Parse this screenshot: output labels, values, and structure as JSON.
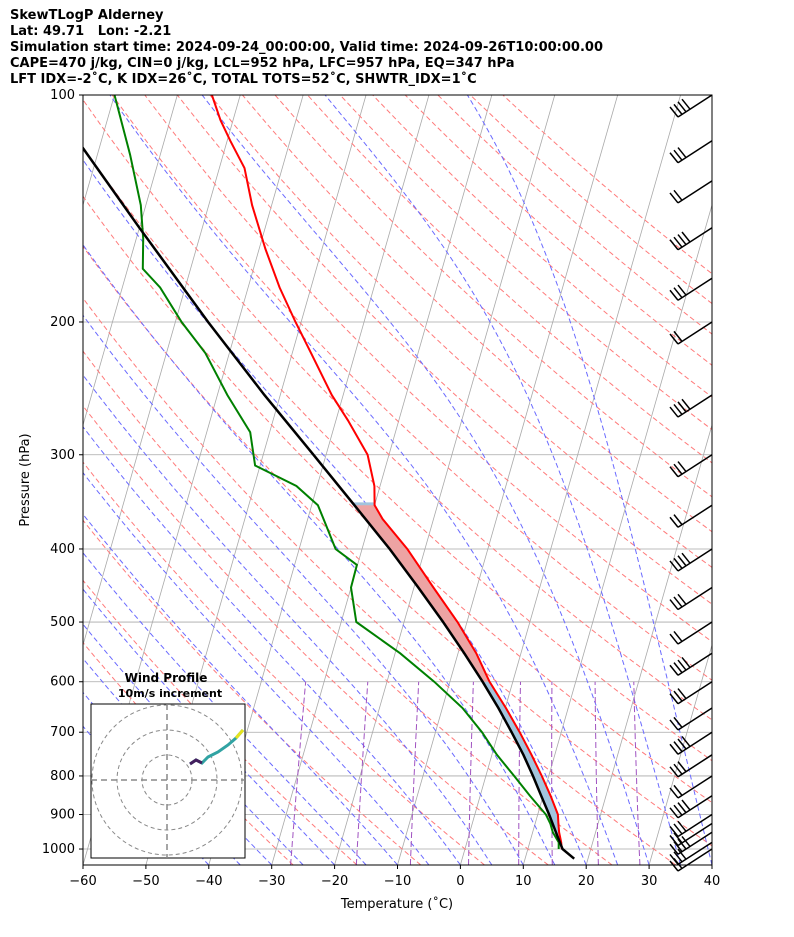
{
  "header": {
    "line1": "SkewTLogP Alderney",
    "line2": "Lat: 49.71   Lon: -2.21",
    "line3": "Simulation start time: 2024-09-24_00:00:00, Valid time: 2024-09-26T10:00:00.00",
    "line4": "CAPE=470 j/kg, CIN=0 j/kg, LCL=952 hPa, LFC=957 hPa, EQ=347 hPa",
    "line5": "LFT IDX=-2˚C, K IDX=26˚C, TOTAL TOTS=52˚C, SHWTR_IDX=1˚C"
  },
  "chart_data": {
    "type": "skew-t log-p",
    "xlabel": "Temperature (˚C)",
    "ylabel": "Pressure (hPa)",
    "xlim": [
      -60,
      40
    ],
    "ylim": [
      1050,
      100
    ],
    "x_ticks": [
      "−60",
      "−50",
      "−40",
      "−30",
      "−20",
      "−10",
      "0",
      "10",
      "20",
      "30",
      "40"
    ],
    "y_ticks": [
      100,
      200,
      300,
      400,
      500,
      600,
      700,
      800,
      900,
      1000
    ],
    "colors": {
      "temperature": "#ff0000",
      "dewpoint": "#008000",
      "parcel": "#000000",
      "cape_fill": "#a2c4dd",
      "cin_fill": "#eda3a3",
      "dry_adiabat": "#ff7b7b",
      "moist_adiabat": "#6a6aff",
      "mixing_ratio": "#a052c0",
      "isotherm": "#a9a9a9"
    },
    "temperature_profile": [
      {
        "p": 1000,
        "t": 15.4
      },
      {
        "p": 980,
        "t": 15.0
      },
      {
        "p": 950,
        "t": 14.2
      },
      {
        "p": 925,
        "t": 13.7
      },
      {
        "p": 900,
        "t": 13.2
      },
      {
        "p": 850,
        "t": 11.2
      },
      {
        "p": 800,
        "t": 8.9
      },
      {
        "p": 750,
        "t": 6.3
      },
      {
        "p": 700,
        "t": 3.4
      },
      {
        "p": 650,
        "t": 0.1
      },
      {
        "p": 600,
        "t": -3.7
      },
      {
        "p": 550,
        "t": -7.1
      },
      {
        "p": 500,
        "t": -11.5
      },
      {
        "p": 450,
        "t": -16.9
      },
      {
        "p": 400,
        "t": -22.8
      },
      {
        "p": 365,
        "t": -28.1
      },
      {
        "p": 350,
        "t": -30.0
      },
      {
        "p": 330,
        "t": -30.9
      },
      {
        "p": 300,
        "t": -33.4
      },
      {
        "p": 270,
        "t": -38.1
      },
      {
        "p": 250,
        "t": -41.8
      },
      {
        "p": 220,
        "t": -47.0
      },
      {
        "p": 200,
        "t": -50.9
      },
      {
        "p": 180,
        "t": -55.0
      },
      {
        "p": 160,
        "t": -59.0
      },
      {
        "p": 140,
        "t": -63.1
      },
      {
        "p": 125,
        "t": -66.0
      },
      {
        "p": 115,
        "t": -69.5
      },
      {
        "p": 108,
        "t": -72.0
      },
      {
        "p": 100,
        "t": -74.5
      }
    ],
    "dewpoint_profile": [
      {
        "p": 1000,
        "t": 14.9
      },
      {
        "p": 980,
        "t": 14.6
      },
      {
        "p": 950,
        "t": 13.2
      },
      {
        "p": 925,
        "t": 12.4
      },
      {
        "p": 900,
        "t": 11.3
      },
      {
        "p": 850,
        "t": 7.9
      },
      {
        "p": 800,
        "t": 4.5
      },
      {
        "p": 750,
        "t": 0.8
      },
      {
        "p": 700,
        "t": -2.6
      },
      {
        "p": 650,
        "t": -6.8
      },
      {
        "p": 600,
        "t": -12.5
      },
      {
        "p": 550,
        "t": -19.2
      },
      {
        "p": 500,
        "t": -27.6
      },
      {
        "p": 450,
        "t": -30.0
      },
      {
        "p": 420,
        "t": -30.1
      },
      {
        "p": 400,
        "t": -34.2
      },
      {
        "p": 370,
        "t": -37.0
      },
      {
        "p": 350,
        "t": -39.0
      },
      {
        "p": 330,
        "t": -43.3
      },
      {
        "p": 310,
        "t": -50.8
      },
      {
        "p": 280,
        "t": -53.1
      },
      {
        "p": 250,
        "t": -58.4
      },
      {
        "p": 220,
        "t": -63.8
      },
      {
        "p": 200,
        "t": -69.0
      },
      {
        "p": 180,
        "t": -74.0
      },
      {
        "p": 170,
        "t": -77.6
      },
      {
        "p": 155,
        "t": -78.9
      },
      {
        "p": 140,
        "t": -80.8
      },
      {
        "p": 120,
        "t": -84.8
      },
      {
        "p": 100,
        "t": -90.0
      }
    ],
    "parcel_profile": [
      {
        "p": 1030,
        "t": 17.8
      },
      {
        "p": 1000,
        "t": 15.5
      },
      {
        "p": 950,
        "t": 13.7
      },
      {
        "p": 900,
        "t": 11.8
      },
      {
        "p": 850,
        "t": 9.7
      },
      {
        "p": 800,
        "t": 7.5
      },
      {
        "p": 750,
        "t": 5.0
      },
      {
        "p": 700,
        "t": 2.1
      },
      {
        "p": 650,
        "t": -1.1
      },
      {
        "p": 600,
        "t": -4.8
      },
      {
        "p": 550,
        "t": -9.0
      },
      {
        "p": 500,
        "t": -13.8
      },
      {
        "p": 450,
        "t": -19.3
      },
      {
        "p": 400,
        "t": -25.6
      },
      {
        "p": 350,
        "t": -33.2
      },
      {
        "p": 300,
        "t": -42.0
      },
      {
        "p": 250,
        "t": -52.5
      },
      {
        "p": 200,
        "t": -64.8
      },
      {
        "p": 150,
        "t": -80.0
      },
      {
        "p": 100,
        "t": -101.0
      }
    ],
    "wind_barbs_pressure": [
      1000,
      980,
      950,
      925,
      900,
      850,
      800,
      750,
      700,
      650,
      600,
      550,
      500,
      450,
      400,
      350,
      300,
      250,
      200,
      175,
      150,
      130,
      115,
      100
    ],
    "hodograph": {
      "title": "Wind Profile",
      "subtitle": "10m/s increment"
    }
  }
}
